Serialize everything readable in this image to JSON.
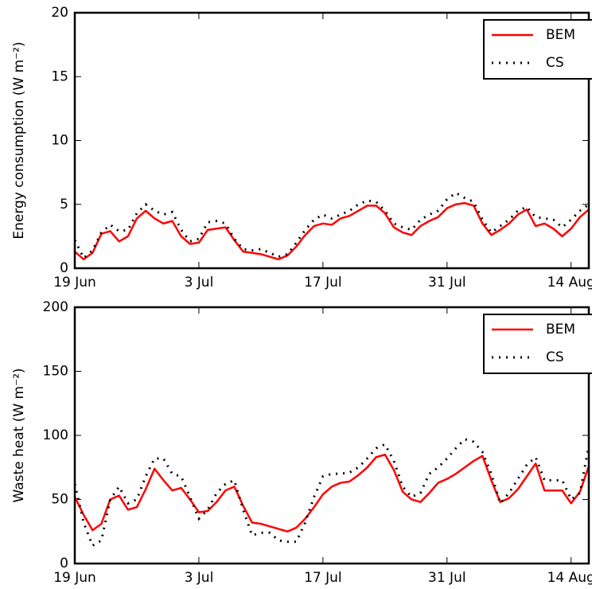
{
  "chart_data": [
    {
      "type": "line",
      "ylabel": "Energy consumption (W m⁻²)",
      "x": [
        "19 Jun",
        "20 Jun",
        "21 Jun",
        "22 Jun",
        "23 Jun",
        "24 Jun",
        "25 Jun",
        "26 Jun",
        "27 Jun",
        "28 Jun",
        "29 Jun",
        "30 Jun",
        "1 Jul",
        "2 Jul",
        "3 Jul",
        "4 Jul",
        "5 Jul",
        "6 Jul",
        "7 Jul",
        "8 Jul",
        "9 Jul",
        "10 Jul",
        "11 Jul",
        "12 Jul",
        "13 Jul",
        "14 Jul",
        "15 Jul",
        "16 Jul",
        "17 Jul",
        "18 Jul",
        "19 Jul",
        "20 Jul",
        "21 Jul",
        "22 Jul",
        "23 Jul",
        "24 Jul",
        "25 Jul",
        "26 Jul",
        "27 Jul",
        "28 Jul",
        "29 Jul",
        "30 Jul",
        "31 Jul",
        "1 Aug",
        "2 Aug",
        "3 Aug",
        "4 Aug",
        "5 Aug",
        "6 Aug",
        "7 Aug",
        "8 Aug",
        "9 Aug",
        "10 Aug",
        "11 Aug",
        "12 Aug",
        "13 Aug",
        "14 Aug",
        "15 Aug",
        "16 Aug"
      ],
      "xlim": [
        "19 Jun",
        "16 Aug"
      ],
      "xticks": [
        "19 Jun",
        "3 Jul",
        "17 Jul",
        "31 Jul",
        "14 Aug"
      ],
      "ylim": [
        0,
        20
      ],
      "yticks": [
        0,
        5,
        10,
        15,
        20
      ],
      "legend": "upper right",
      "series": [
        {
          "name": "BEM",
          "color": "#ff0000",
          "style": "solid",
          "values": [
            1.3,
            0.7,
            1.2,
            2.7,
            2.9,
            2.1,
            2.5,
            3.9,
            4.5,
            3.9,
            3.5,
            3.7,
            2.5,
            1.9,
            2.0,
            3.0,
            3.1,
            3.2,
            2.2,
            1.3,
            1.2,
            1.1,
            0.9,
            0.7,
            1.0,
            1.7,
            2.6,
            3.3,
            3.5,
            3.4,
            3.9,
            4.1,
            4.5,
            4.9,
            4.9,
            4.3,
            3.2,
            2.8,
            2.6,
            3.3,
            3.7,
            4.0,
            4.7,
            5.0,
            5.1,
            4.9,
            3.5,
            2.6,
            3.0,
            3.5,
            4.2,
            4.6,
            3.3,
            3.5,
            3.1,
            2.5,
            3.1,
            4.0,
            4.6
          ]
        },
        {
          "name": "CS",
          "color": "#000000",
          "style": "dotted",
          "values": [
            2.2,
            0.8,
            1.4,
            2.8,
            3.4,
            2.9,
            3.0,
            4.3,
            5.0,
            4.5,
            4.2,
            4.4,
            3.0,
            2.1,
            2.3,
            3.6,
            3.7,
            3.5,
            2.3,
            1.5,
            1.4,
            1.5,
            1.2,
            0.9,
            1.1,
            2.0,
            3.0,
            3.8,
            4.2,
            3.9,
            4.2,
            4.5,
            5.0,
            5.3,
            5.2,
            4.5,
            3.5,
            3.2,
            3.0,
            3.8,
            4.2,
            4.5,
            5.4,
            5.9,
            5.5,
            5.2,
            3.8,
            2.8,
            3.3,
            3.8,
            4.5,
            4.8,
            4.0,
            3.9,
            3.8,
            3.2,
            3.8,
            4.5,
            5.0
          ]
        }
      ]
    },
    {
      "type": "line",
      "ylabel": "Waste heat (W m⁻²)",
      "x": [
        "19 Jun",
        "20 Jun",
        "21 Jun",
        "22 Jun",
        "23 Jun",
        "24 Jun",
        "25 Jun",
        "26 Jun",
        "27 Jun",
        "28 Jun",
        "29 Jun",
        "30 Jun",
        "1 Jul",
        "2 Jul",
        "3 Jul",
        "4 Jul",
        "5 Jul",
        "6 Jul",
        "7 Jul",
        "8 Jul",
        "9 Jul",
        "10 Jul",
        "11 Jul",
        "12 Jul",
        "13 Jul",
        "14 Jul",
        "15 Jul",
        "16 Jul",
        "17 Jul",
        "18 Jul",
        "19 Jul",
        "20 Jul",
        "21 Jul",
        "22 Jul",
        "23 Jul",
        "24 Jul",
        "25 Jul",
        "26 Jul",
        "27 Jul",
        "28 Jul",
        "29 Jul",
        "30 Jul",
        "31 Jul",
        "1 Aug",
        "2 Aug",
        "3 Aug",
        "4 Aug",
        "5 Aug",
        "6 Aug",
        "7 Aug",
        "8 Aug",
        "9 Aug",
        "10 Aug",
        "11 Aug",
        "12 Aug",
        "13 Aug",
        "14 Aug",
        "15 Aug",
        "16 Aug"
      ],
      "xlim": [
        "19 Jun",
        "16 Aug"
      ],
      "xticks": [
        "19 Jun",
        "3 Jul",
        "17 Jul",
        "31 Jul",
        "14 Aug"
      ],
      "ylim": [
        0,
        200
      ],
      "yticks": [
        0,
        50,
        100,
        150,
        200
      ],
      "legend": "upper right",
      "series": [
        {
          "name": "BEM",
          "color": "#ff0000",
          "style": "solid",
          "values": [
            52,
            38,
            26,
            31,
            50,
            53,
            42,
            44,
            58,
            74,
            65,
            57,
            59,
            50,
            40,
            41,
            48,
            57,
            60,
            45,
            32,
            31,
            29,
            27,
            25,
            28,
            35,
            44,
            54,
            60,
            63,
            64,
            69,
            75,
            83,
            85,
            73,
            56,
            50,
            48,
            55,
            63,
            66,
            70,
            75,
            80,
            84,
            65,
            48,
            51,
            58,
            68,
            78,
            57,
            57,
            57,
            47,
            56,
            76
          ]
        },
        {
          "name": "CS",
          "color": "#000000",
          "style": "dotted",
          "values": [
            62,
            32,
            14,
            18,
            50,
            60,
            47,
            50,
            68,
            82,
            82,
            70,
            68,
            52,
            35,
            42,
            55,
            62,
            65,
            42,
            22,
            24,
            24,
            18,
            17,
            17,
            32,
            52,
            68,
            70,
            70,
            71,
            75,
            82,
            90,
            93,
            80,
            60,
            52,
            55,
            70,
            75,
            82,
            90,
            97,
            95,
            87,
            70,
            47,
            55,
            66,
            77,
            83,
            65,
            65,
            65,
            50,
            55,
            92
          ]
        }
      ]
    }
  ]
}
